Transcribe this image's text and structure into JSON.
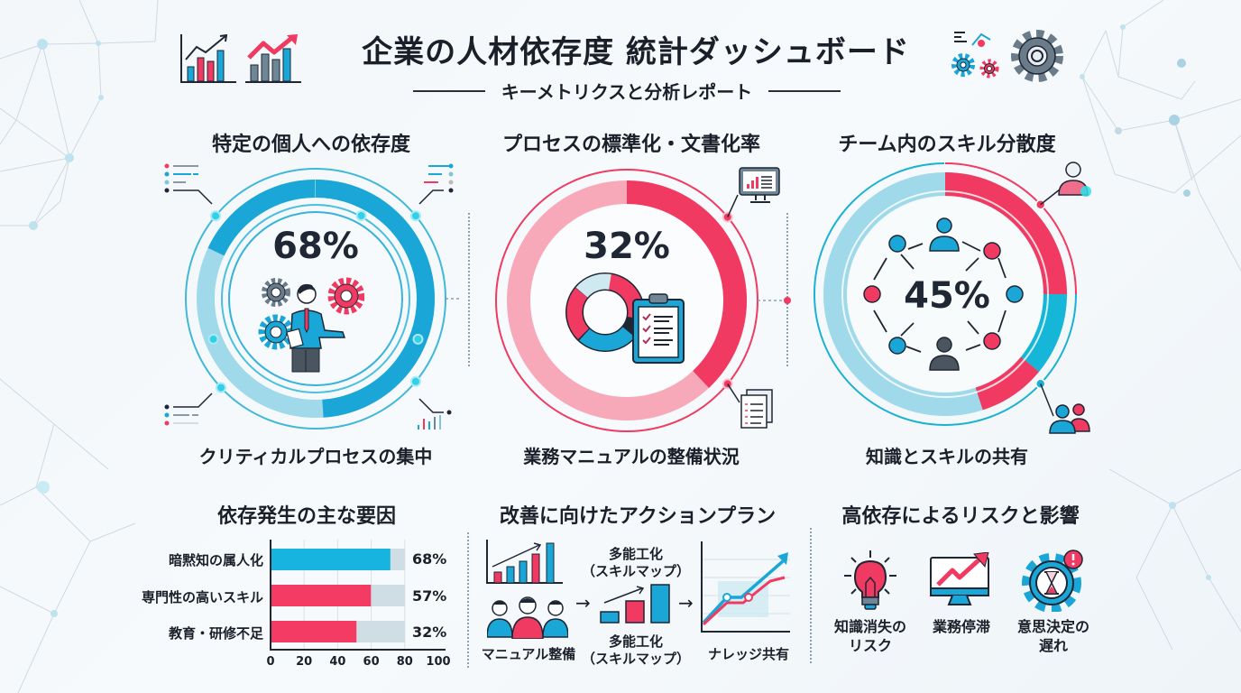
{
  "header": {
    "title": "企業の人材依存度 統計ダッシュボード",
    "subtitle": "キーメトリクスと分析レポート"
  },
  "kpis": [
    {
      "title": "特定の個人への依存度",
      "value_label": "68%",
      "value": 68,
      "caption": "クリティカルプロセスの集中",
      "color": "#1aa6d6"
    },
    {
      "title": "プロセスの標準化・文書化率",
      "value_label": "32%",
      "value": 32,
      "caption": "業務マニュアルの整備状況",
      "color": "#f03a62"
    },
    {
      "title": "チーム内のスキル分散度",
      "value_label": "45%",
      "value": 45,
      "caption": "知識とスキルの共有",
      "color": "#f03a62"
    }
  ],
  "causes": {
    "title": "依存発生の主な要因",
    "items": [
      {
        "label": "暗黙知の属人化",
        "value_label": "68%",
        "color": "#18b4e0"
      },
      {
        "label": "専門性の高いスキル",
        "value_label": "57%",
        "color": "#f43b64"
      },
      {
        "label": "教育・研修不足",
        "value_label": "32%",
        "color": "#f43b64"
      }
    ],
    "ticks": [
      "0",
      "20",
      "40",
      "60",
      "80",
      "100"
    ]
  },
  "actions": {
    "title": "改善に向けたアクションプラン",
    "steps": [
      {
        "label": "マニュアル整備"
      },
      {
        "label_top": "多能工化\n（スキルマップ）",
        "label_bottom": "多能工化\n（スキルマップ）"
      },
      {
        "label": "ナレッジ共有"
      }
    ],
    "arrow": "→"
  },
  "risks": {
    "title": "高依存によるリスクと影響",
    "items": [
      {
        "label_line1": "知識消失の",
        "label_line2": "リスク",
        "icon": "lightbulb-icon"
      },
      {
        "label_line1": "業務停滞",
        "label_line2": "",
        "icon": "monitor-trend-icon"
      },
      {
        "label_line1": "意思決定の",
        "label_line2": "遅れ",
        "icon": "gear-hourglass-icon"
      }
    ]
  },
  "colors": {
    "blue": "#1aa6d6",
    "light_blue": "#9fd9ea",
    "pink": "#f03a62",
    "light_pink": "#f8a9b9",
    "dark": "#1f2634",
    "gray_track": "#cfdde5"
  }
}
